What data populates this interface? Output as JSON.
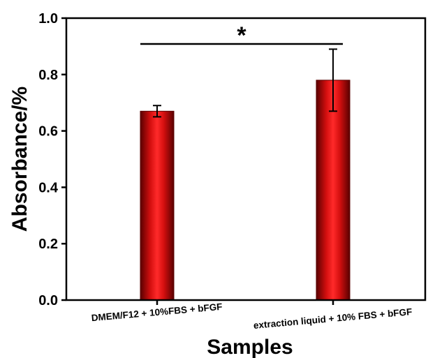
{
  "chart_data": {
    "type": "bar",
    "categories": [
      "DMEM/F12 + 10%FBS + bFGF",
      "extraction liquid + 10% FBS + bFGF"
    ],
    "series": [
      {
        "values": [
          0.67,
          0.78
        ],
        "errors": [
          0.02,
          0.11
        ]
      }
    ],
    "xlabel": "Samples",
    "ylabel": "Absorbance/%",
    "ylim": [
      0.0,
      1.0
    ],
    "yticks": [
      "0.0",
      "0.2",
      "0.4",
      "0.6",
      "0.8",
      "1.0"
    ],
    "grid": false,
    "legend": "none",
    "bar_color": "#d01010",
    "annotations": [
      {
        "text": "*",
        "type": "significance",
        "between": [
          0,
          1
        ]
      }
    ]
  }
}
